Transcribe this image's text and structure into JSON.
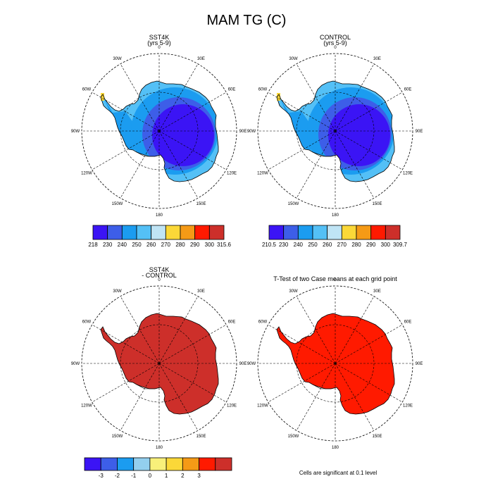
{
  "title": "MAM TG (C)",
  "panels": [
    {
      "id": "sst4k",
      "title_line1": "SST4K",
      "title_line2": "(yrs 5-9)",
      "fill": "temp"
    },
    {
      "id": "control",
      "title_line1": "CONTROL",
      "title_line2": "(yrs 5-9)",
      "fill": "temp"
    },
    {
      "id": "diff",
      "title_line1": "SST4K",
      "title_line2": "- CONTROL",
      "fill": "#cd2f2a"
    },
    {
      "id": "ttest",
      "title_line1": "T-Test of two Case means at each grid point",
      "title_line2": "",
      "fill": "#ff1a00"
    }
  ],
  "longitude_labels": [
    "0",
    "30E",
    "60E",
    "90E",
    "120E",
    "150E",
    "180",
    "150W",
    "120W",
    "90W",
    "60W",
    "30W"
  ],
  "colorbars": {
    "sst4k": {
      "colors": [
        "#3b14f5",
        "#3d5ee8",
        "#1b9cf0",
        "#54c0f6",
        "#bfe4f5",
        "#fbd838",
        "#f59a16",
        "#ff1a00",
        "#cd2f2a"
      ],
      "labels": [
        "218",
        "230",
        "240",
        "250",
        "260",
        "270",
        "280",
        "290",
        "300",
        "315.6"
      ]
    },
    "control": {
      "colors": [
        "#3b14f5",
        "#3d5ee8",
        "#1b9cf0",
        "#54c0f6",
        "#bfe4f5",
        "#fbd838",
        "#f59a16",
        "#ff1a00",
        "#cd2f2a"
      ],
      "labels": [
        "210.5",
        "230",
        "240",
        "250",
        "260",
        "270",
        "280",
        "290",
        "300",
        "309.7"
      ]
    },
    "diff": {
      "colors": [
        "#3b14f5",
        "#3d5ee8",
        "#1b9cf0",
        "#93cfee",
        "#f8f07a",
        "#fbd838",
        "#f59a16",
        "#ff1a00",
        "#cd2f2a"
      ],
      "labels": [
        "-3",
        "-2",
        "-1",
        "0",
        "1",
        "2",
        "3"
      ]
    }
  },
  "footnote": "Cells are significant at 0.1 level",
  "colors": {
    "sst_interior": "#3b14f5",
    "sst_mid": "#3d5ee8",
    "sst_coast": "#1b9cf0",
    "sst_edge": "#54c0f6",
    "peninsula_warm": "#fbd838"
  }
}
